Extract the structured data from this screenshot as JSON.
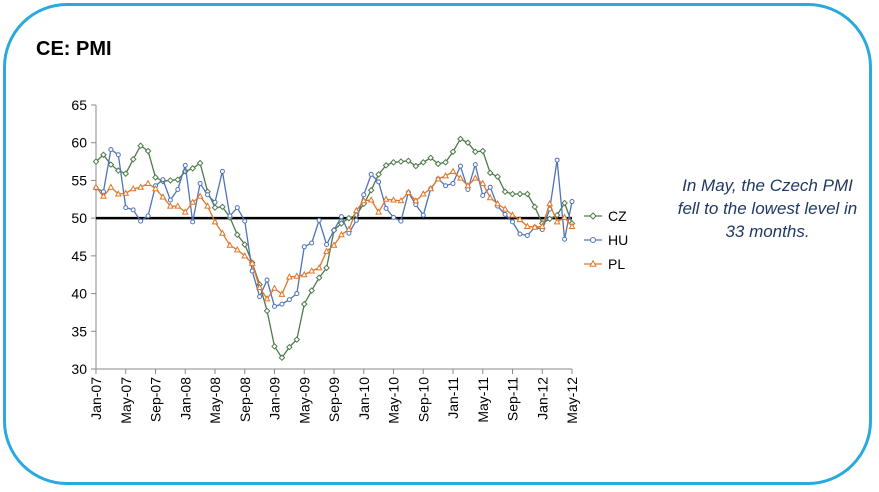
{
  "title": "CE: PMI",
  "note": "In May, the  Czech PMI fell to the lowest level in 33 months.",
  "chart_data": {
    "type": "line",
    "title": "CE: PMI",
    "xlabel": "",
    "ylabel": "",
    "ylim": [
      30,
      65
    ],
    "yticks": [
      30,
      35,
      40,
      45,
      50,
      55,
      60,
      65
    ],
    "reference_line": 50,
    "grid": false,
    "legend": "right",
    "x_tick_labels": [
      "Jan-07",
      "May-07",
      "Sep-07",
      "Jan-08",
      "May-08",
      "Sep-08",
      "Jan-09",
      "May-09",
      "Sep-09",
      "Jan-10",
      "May-10",
      "Sep-10",
      "Jan-11",
      "May-11",
      "Sep-11",
      "Jan-12",
      "May-12"
    ],
    "months": [
      "Jan-07",
      "Feb-07",
      "Mar-07",
      "Apr-07",
      "May-07",
      "Jun-07",
      "Jul-07",
      "Aug-07",
      "Sep-07",
      "Oct-07",
      "Nov-07",
      "Dec-07",
      "Jan-08",
      "Feb-08",
      "Mar-08",
      "Apr-08",
      "May-08",
      "Jun-08",
      "Jul-08",
      "Aug-08",
      "Sep-08",
      "Oct-08",
      "Nov-08",
      "Dec-08",
      "Jan-09",
      "Feb-09",
      "Mar-09",
      "Apr-09",
      "May-09",
      "Jun-09",
      "Jul-09",
      "Aug-09",
      "Sep-09",
      "Oct-09",
      "Nov-09",
      "Dec-09",
      "Jan-10",
      "Feb-10",
      "Mar-10",
      "Apr-10",
      "May-10",
      "Jun-10",
      "Jul-10",
      "Aug-10",
      "Sep-10",
      "Oct-10",
      "Nov-10",
      "Dec-10",
      "Jan-11",
      "Feb-11",
      "Mar-11",
      "Apr-11",
      "May-11",
      "Jun-11",
      "Jul-11",
      "Aug-11",
      "Sep-11",
      "Oct-11",
      "Nov-11",
      "Dec-11",
      "Jan-12",
      "Feb-12",
      "Mar-12",
      "Apr-12",
      "May-12"
    ],
    "series": [
      {
        "name": "CZ",
        "color": "#4E7A4B",
        "marker": "diamond",
        "values": [
          57.5,
          58.4,
          57.1,
          56.3,
          55.9,
          57.8,
          59.6,
          58.9,
          55.4,
          54.9,
          55.0,
          55.1,
          56.2,
          56.6,
          57.3,
          53.5,
          51.4,
          51.5,
          50.1,
          47.8,
          46.5,
          44.1,
          41.2,
          37.7,
          33.0,
          31.5,
          32.9,
          33.9,
          38.6,
          40.4,
          42.1,
          43.4,
          48.4,
          49.3,
          50.0,
          50.4,
          51.9,
          53.7,
          55.8,
          57.0,
          57.4,
          57.5,
          57.6,
          56.9,
          57.4,
          58.0,
          57.2,
          57.4,
          58.8,
          60.5,
          60.0,
          58.8,
          58.9,
          56.0,
          55.5,
          53.5,
          53.2,
          53.2,
          53.2,
          51.5,
          49.3,
          49.9,
          50.4,
          52.0,
          49.3
        ]
      },
      {
        "name": "HU",
        "color": "#4F73B8",
        "marker": "circle",
        "values": [
          54.0,
          53.5,
          59.1,
          58.4,
          51.4,
          51.1,
          49.6,
          50.3,
          54.3,
          55.1,
          52.4,
          53.8,
          57.0,
          49.5,
          54.6,
          53.1,
          52.1,
          56.2,
          50.3,
          51.4,
          49.6,
          43.0,
          39.6,
          41.8,
          38.3,
          38.6,
          39.2,
          40.0,
          46.2,
          46.7,
          49.7,
          46.5,
          48.4,
          50.2,
          48.0,
          49.7,
          53.1,
          55.8,
          54.8,
          51.3,
          50.1,
          49.6,
          53.4,
          51.8,
          50.4,
          53.9,
          55.2,
          54.3,
          54.6,
          56.9,
          53.8,
          57.1,
          53.0,
          54.1,
          51.6,
          50.5,
          49.5,
          47.9,
          47.7,
          48.8,
          48.5,
          51.2,
          57.7,
          47.2,
          52.2
        ]
      },
      {
        "name": "PL",
        "color": "#E0762A",
        "marker": "triangle",
        "values": [
          54.1,
          52.9,
          54.1,
          53.2,
          53.3,
          53.9,
          54.1,
          54.6,
          53.9,
          52.8,
          51.6,
          51.6,
          50.8,
          52.1,
          52.9,
          51.6,
          49.5,
          48.0,
          46.4,
          45.8,
          45.0,
          44.0,
          40.8,
          39.3,
          40.7,
          39.9,
          42.2,
          42.3,
          42.5,
          43.0,
          43.4,
          45.6,
          46.4,
          47.8,
          48.5,
          51.0,
          52.3,
          52.4,
          50.8,
          52.5,
          52.4,
          52.3,
          53.4,
          52.3,
          53.2,
          53.9,
          55.2,
          55.6,
          56.2,
          55.3,
          54.3,
          55.3,
          54.6,
          52.7,
          51.9,
          51.2,
          50.4,
          49.8,
          48.9,
          48.8,
          48.9,
          51.9,
          49.5,
          50.1,
          48.9
        ]
      }
    ]
  }
}
